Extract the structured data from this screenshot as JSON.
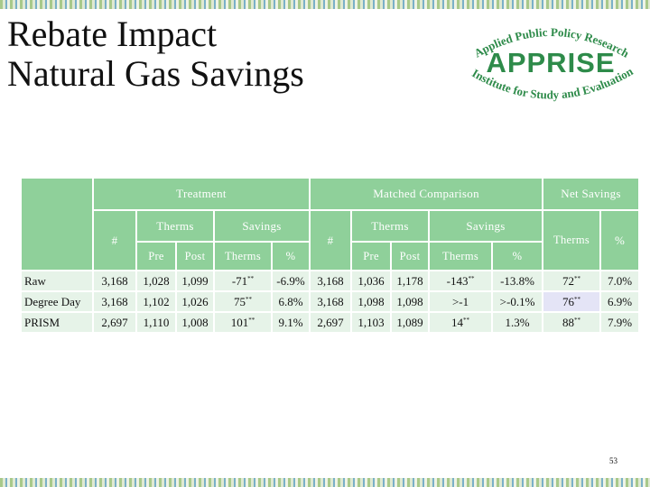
{
  "slide": {
    "title_line1": "Rebate Impact",
    "title_line2": "Natural Gas Savings",
    "slide_number": "53"
  },
  "logo": {
    "top_text": "Applied Public Policy Research",
    "main_text": "APPRISE",
    "bottom_text": "Institute for Study and Evaluation",
    "color": "#2e8b4a"
  },
  "colors": {
    "header_fill": "#8fd09a",
    "row_fill": "#e6f3e8",
    "highlight_fill": "#e4e4f6"
  },
  "table": {
    "headers": {
      "treatment": "Treatment",
      "matched_comparison": "Matched Comparison",
      "net_savings": "Net Savings",
      "count": "#",
      "therms": "Therms",
      "savings": "Savings",
      "pre": "Pre",
      "post": "Post",
      "percent": "%"
    },
    "significance_marker": "**",
    "rows": [
      {
        "label": "Raw",
        "t_count": "3,168",
        "t_pre": "1,028",
        "t_post": "1,099",
        "t_sav_therms": "-71",
        "t_sav_pct": "-6.9%",
        "c_count": "3,168",
        "c_pre": "1,036",
        "c_post": "1,178",
        "c_sav_therms": "-143",
        "c_sav_pct": "-13.8%",
        "n_therms": "72",
        "n_pct": "7.0%"
      },
      {
        "label": "Degree Day",
        "t_count": "3,168",
        "t_pre": "1,102",
        "t_post": "1,026",
        "t_sav_therms": "75",
        "t_sav_pct": "6.8%",
        "c_count": "3,168",
        "c_pre": "1,098",
        "c_post": "1,098",
        "c_sav_therms": ">-1",
        "c_sav_pct": ">-0.1%",
        "n_therms": "76",
        "n_pct": "6.9%"
      },
      {
        "label": "PRISM",
        "t_count": "2,697",
        "t_pre": "1,110",
        "t_post": "1,008",
        "t_sav_therms": "101",
        "t_sav_pct": "9.1%",
        "c_count": "2,697",
        "c_pre": "1,103",
        "c_post": "1,089",
        "c_sav_therms": "14",
        "c_sav_pct": "1.3%",
        "n_therms": "88",
        "n_pct": "7.9%"
      }
    ]
  }
}
